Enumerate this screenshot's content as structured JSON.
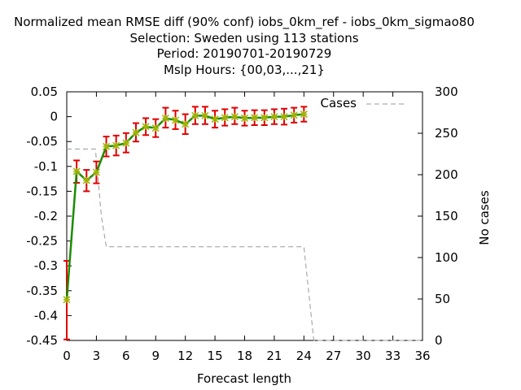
{
  "chart_data": {
    "type": "line",
    "title_lines": [
      "Normalized mean RMSE diff (90% conf) iobs_0km_ref - iobs_0km_sigmao80",
      "Selection: Sweden using   113 stations",
      "Period: 20190701-20190729",
      "Mslp   Hours: {00,03,...,21}"
    ],
    "xlabel": "Forecast length",
    "ylabel": "",
    "y2label": "No cases",
    "xlim": [
      0,
      36
    ],
    "ylim": [
      -0.45,
      0.05
    ],
    "y2lim": [
      0,
      300
    ],
    "xticks": [
      0,
      3,
      6,
      9,
      12,
      15,
      18,
      21,
      24,
      27,
      30,
      33,
      36
    ],
    "xtick_labels": [
      "0",
      "3",
      "6",
      "9",
      "12",
      "15",
      "18",
      "21",
      "24",
      "27",
      "30",
      "33",
      "36"
    ],
    "yticks": [
      0.05,
      0,
      -0.05,
      -0.1,
      -0.15,
      -0.2,
      -0.25,
      -0.3,
      -0.35,
      -0.4,
      -0.45
    ],
    "ytick_labels": [
      "0.05",
      "0",
      "-0.05",
      "-0.1",
      "-0.15",
      "-0.2",
      "-0.25",
      "-0.3",
      "-0.35",
      "-0.4",
      "-0.45"
    ],
    "y2ticks": [
      300,
      250,
      200,
      150,
      100,
      50,
      0
    ],
    "y2tick_labels": [
      "300",
      "250",
      "200",
      "150",
      "100",
      "50",
      "0"
    ],
    "grid": false,
    "legend_position": "top-right",
    "series": [
      {
        "x": [
          0,
          1,
          2,
          3,
          4,
          5,
          6,
          7,
          8,
          9,
          10,
          11,
          12,
          13,
          14,
          15,
          16,
          17,
          18,
          19,
          20,
          21,
          22,
          23,
          24
        ],
        "values": [
          -0.368,
          -0.11,
          -0.128,
          -0.112,
          -0.06,
          -0.058,
          -0.053,
          -0.032,
          -0.02,
          -0.023,
          -0.003,
          -0.007,
          -0.015,
          0.002,
          0.002,
          -0.005,
          -0.002,
          0.0,
          -0.003,
          -0.002,
          -0.002,
          0.0,
          0.0,
          0.003,
          0.005
        ],
        "err_low": [
          -0.448,
          -0.133,
          -0.15,
          -0.134,
          -0.08,
          -0.078,
          -0.072,
          -0.05,
          -0.037,
          -0.041,
          -0.022,
          -0.025,
          -0.035,
          -0.015,
          -0.015,
          -0.022,
          -0.018,
          -0.015,
          -0.018,
          -0.017,
          -0.017,
          -0.015,
          -0.016,
          -0.012,
          -0.01
        ],
        "err_high": [
          -0.29,
          -0.088,
          -0.107,
          -0.09,
          -0.04,
          -0.038,
          -0.033,
          -0.013,
          -0.003,
          -0.005,
          0.018,
          0.012,
          0.005,
          0.02,
          0.02,
          0.012,
          0.015,
          0.018,
          0.012,
          0.013,
          0.013,
          0.015,
          0.016,
          0.018,
          0.02
        ],
        "color": "#1a8c00",
        "marker_color": "#a0b400",
        "error_color": "#e00000"
      },
      {
        "name": "Cases",
        "axis": "y2",
        "x": [
          0,
          2.9,
          3.5,
          4,
          24,
          25,
          36
        ],
        "values": [
          231,
          231,
          150,
          113,
          113,
          0,
          0
        ],
        "color": "#999999",
        "dash": "dashed"
      }
    ]
  }
}
